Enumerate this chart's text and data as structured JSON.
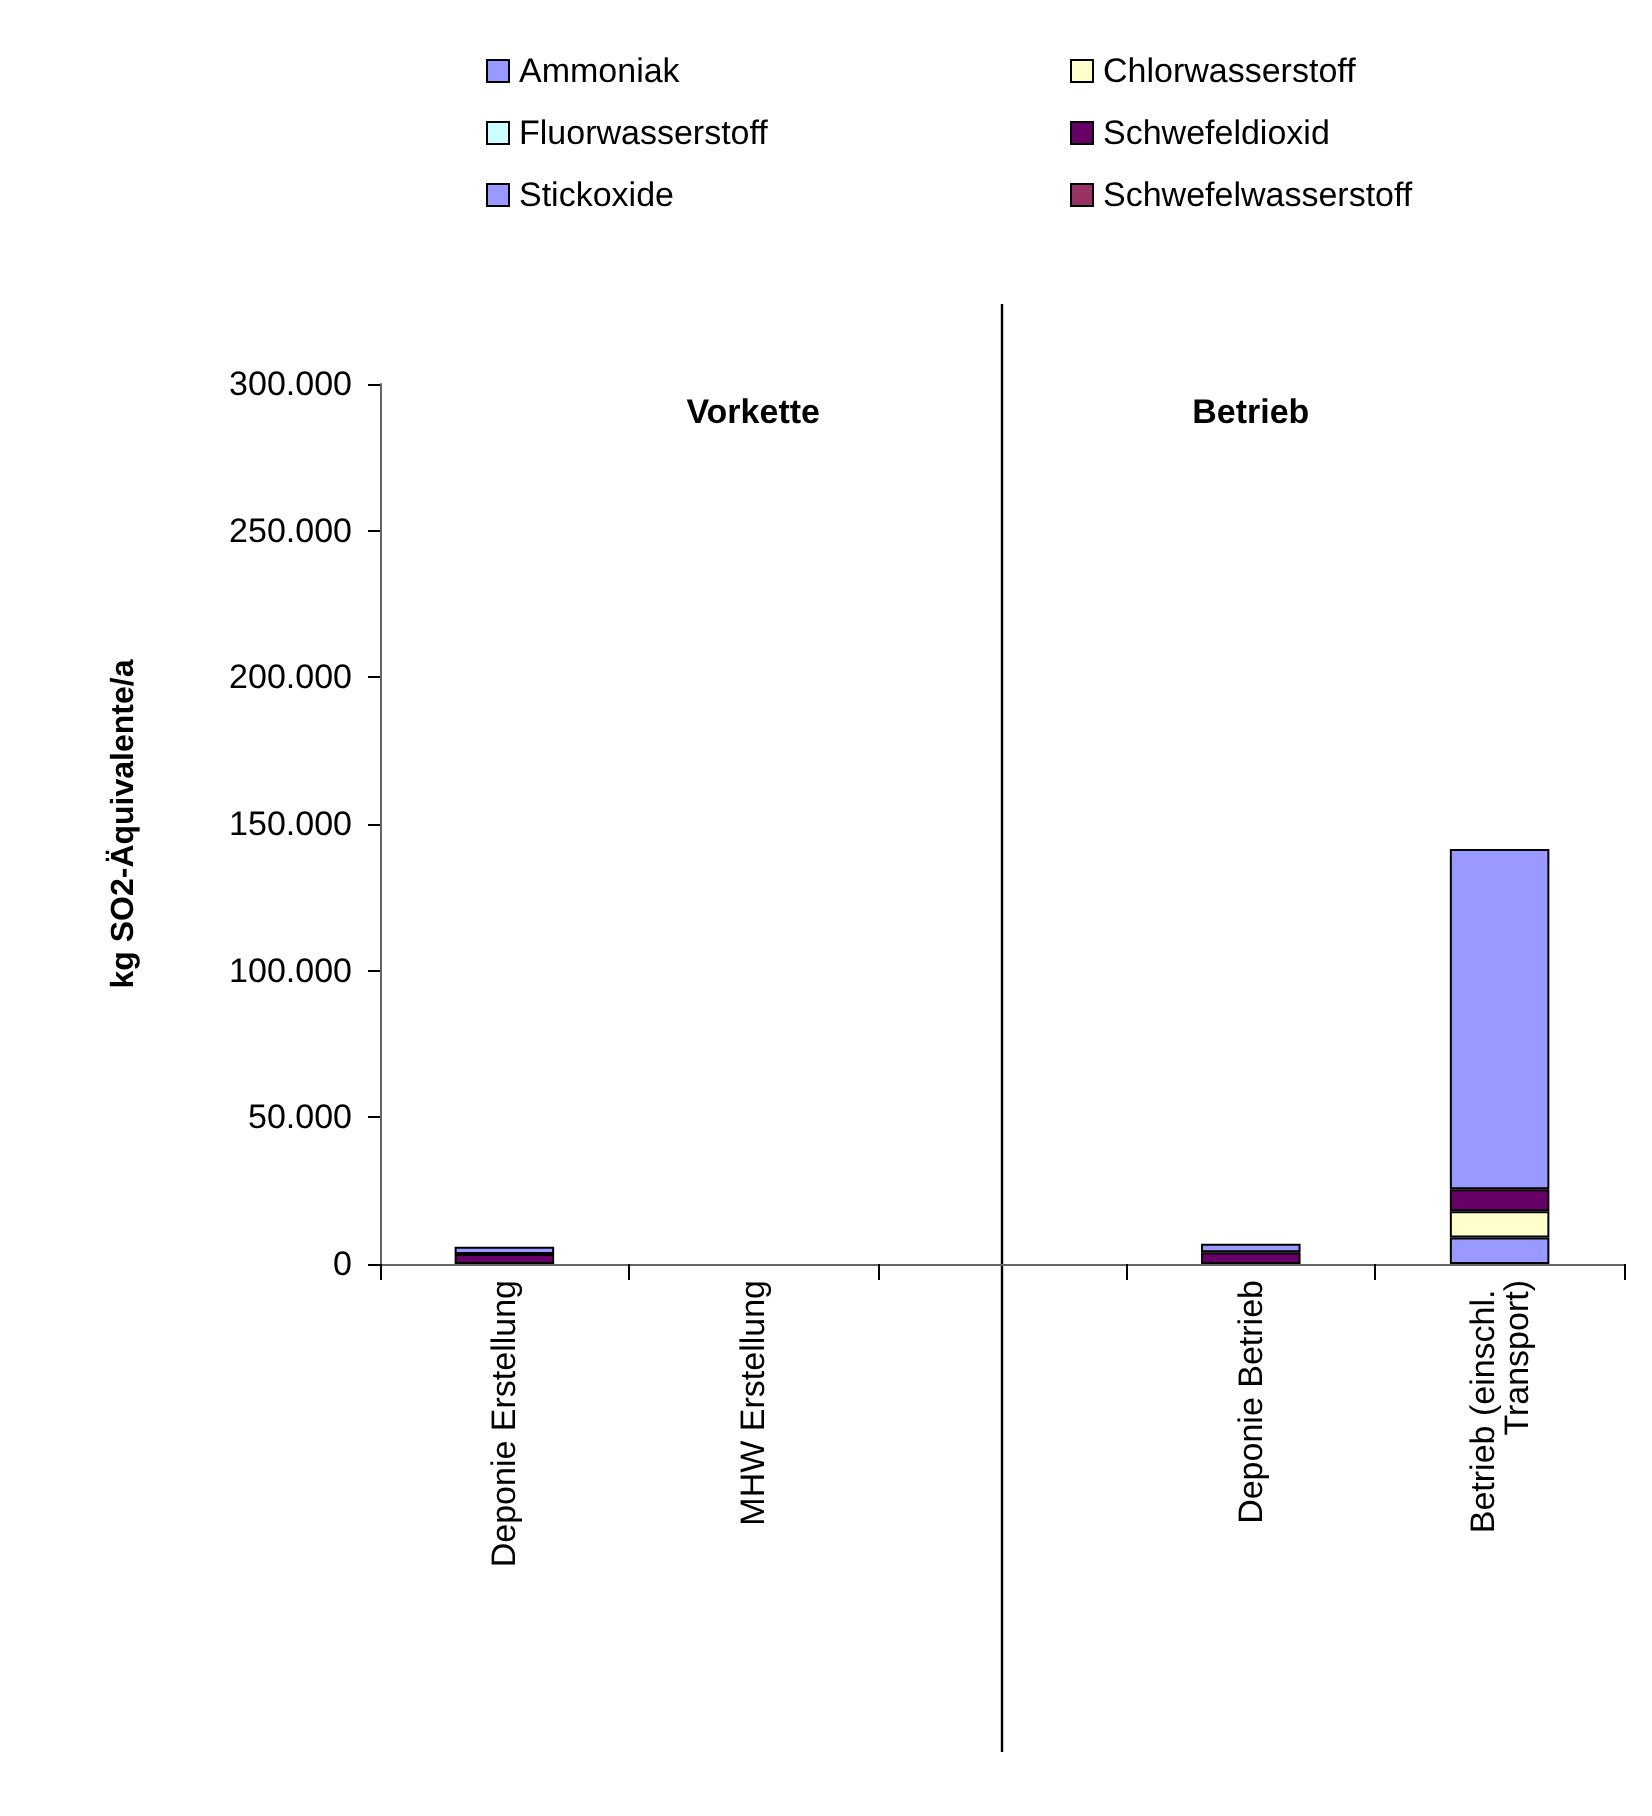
{
  "chart_data": {
    "type": "bar",
    "stacked": true,
    "ylabel": "kg SO2-Äquivalente/a",
    "categories": [
      "Deponie Erstellung",
      "MHW Erstellung",
      null,
      "Deponie Betrieb",
      "Betrieb (einschl. Transport)"
    ],
    "series": [
      {
        "name": "Ammoniak",
        "color": "#9999ff",
        "values": [
          null,
          null,
          null,
          null,
          9000
        ]
      },
      {
        "name": "Chlorwasserstoff",
        "color": "#ffffcc",
        "values": [
          null,
          null,
          null,
          null,
          9000
        ]
      },
      {
        "name": "Fluorwasserstoff",
        "color": "#ccffff",
        "values": [
          null,
          null,
          null,
          null,
          null
        ]
      },
      {
        "name": "Schwefeldioxid",
        "color": "#660066",
        "values": [
          3400,
          null,
          null,
          4000,
          7500
        ]
      },
      {
        "name": "Stickoxide",
        "color": "#9999ff",
        "values": [
          2500,
          null,
          null,
          2900,
          116000
        ]
      },
      {
        "name": "Schwefelwasserstoff",
        "color": "#993366",
        "values": [
          null,
          null,
          null,
          null,
          null
        ]
      }
    ],
    "ylim": [
      0,
      300000
    ],
    "yticks": [
      {
        "value": 0,
        "label": "0"
      },
      {
        "value": 50000,
        "label": "50.000"
      },
      {
        "value": 100000,
        "label": "100.000"
      },
      {
        "value": 150000,
        "label": "150.000"
      },
      {
        "value": 200000,
        "label": "200.000"
      },
      {
        "value": 250000,
        "label": "250.000"
      },
      {
        "value": 300000,
        "label": "300.000"
      }
    ],
    "annotations": [
      "Vorkette",
      "Betrieb"
    ],
    "legend": "top"
  }
}
